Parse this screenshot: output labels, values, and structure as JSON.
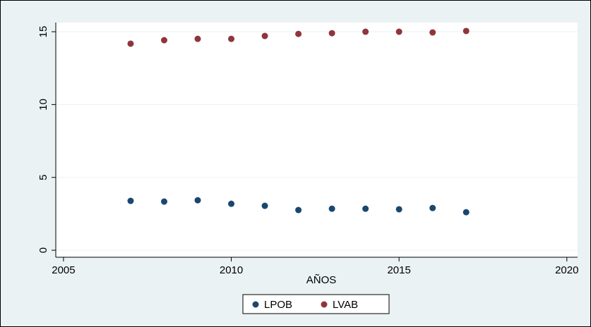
{
  "chart_data": {
    "type": "scatter",
    "x_label": "AÑOS",
    "series": [
      {
        "name": "LPOB",
        "color": "#1a476f",
        "x": [
          2007,
          2008,
          2009,
          2010,
          2011,
          2012,
          2013,
          2014,
          2015,
          2016,
          2017
        ],
        "values": [
          3.39,
          3.34,
          3.43,
          3.19,
          3.05,
          2.76,
          2.85,
          2.85,
          2.81,
          2.9,
          2.61
        ]
      },
      {
        "name": "LVAB",
        "color": "#90353b",
        "x": [
          2007,
          2008,
          2009,
          2010,
          2011,
          2012,
          2013,
          2014,
          2015,
          2016,
          2017
        ],
        "values": [
          14.18,
          14.42,
          14.51,
          14.51,
          14.71,
          14.85,
          14.9,
          15.0,
          15.0,
          14.95,
          15.05
        ]
      }
    ],
    "xlim": [
      2004.77,
      2020.32
    ],
    "xticks": [
      2005,
      2010,
      2015,
      2020
    ],
    "ylim": [
      -0.48,
      15.63
    ],
    "yticks": [
      0,
      5,
      10,
      15
    ],
    "grid": true,
    "legend": "bottom"
  }
}
